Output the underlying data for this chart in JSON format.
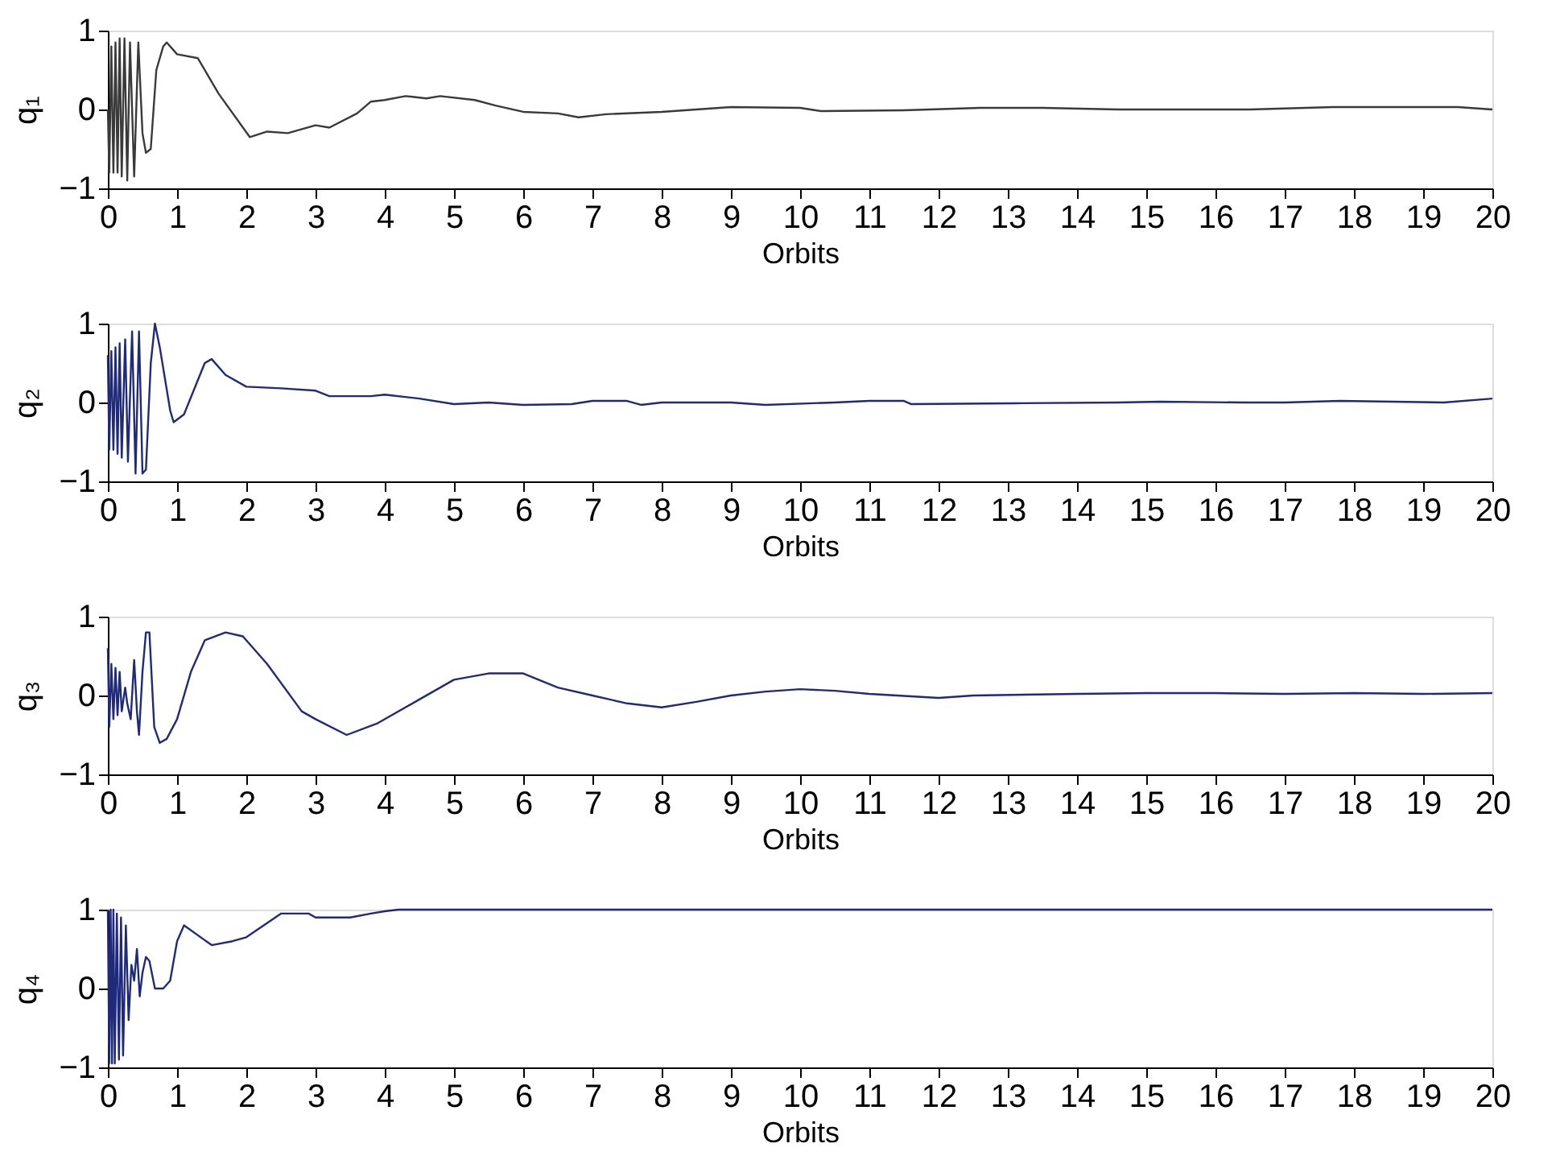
{
  "chart_data": [
    {
      "type": "line",
      "xlabel": "Orbits",
      "ylabel": "q₁",
      "xlim": [
        0,
        20
      ],
      "xticks": [
        0,
        1,
        2,
        3,
        4,
        5,
        6,
        7,
        8,
        9,
        10,
        11,
        12,
        13,
        14,
        15,
        16,
        17,
        18,
        19,
        20
      ],
      "ylim": [
        -1,
        1
      ],
      "yticks": [
        -1,
        0,
        1
      ],
      "grid": false,
      "x": [
        0,
        0.02,
        0.05,
        0.08,
        0.11,
        0.14,
        0.17,
        0.2,
        0.24,
        0.28,
        0.32,
        0.38,
        0.44,
        0.5,
        0.55,
        0.62,
        0.7,
        0.8,
        0.85,
        1.0,
        1.3,
        1.6,
        2.05,
        2.3,
        2.6,
        3.0,
        3.2,
        3.6,
        3.8,
        4.0,
        4.3,
        4.6,
        4.8,
        5.3,
        5.6,
        6.0,
        6.5,
        6.8,
        7.2,
        8,
        8.5,
        9,
        10,
        10.3,
        11.5,
        12.6,
        13.5,
        14.6,
        16.5,
        17.7,
        19.5,
        20
      ],
      "series": [
        {
          "color": "#3a3a3a",
          "values": [
            0,
            -0.8,
            0.8,
            -0.8,
            0.85,
            -0.8,
            0.9,
            -0.85,
            0.9,
            -0.9,
            0.85,
            -0.85,
            0.85,
            -0.3,
            -0.55,
            -0.5,
            0.5,
            0.8,
            0.85,
            0.7,
            0.65,
            0.2,
            -0.35,
            -0.28,
            -0.3,
            -0.2,
            -0.23,
            -0.05,
            0.1,
            0.12,
            0.17,
            0.14,
            0.17,
            0.12,
            0.05,
            -0.03,
            -0.05,
            -0.1,
            -0.06,
            -0.03,
            0.0,
            0.03,
            0.02,
            -0.02,
            -0.01,
            0.02,
            0.02,
            0.0,
            0.0,
            0.03,
            0.03,
            0.0
          ]
        }
      ]
    },
    {
      "type": "line",
      "xlabel": "Orbits",
      "ylabel": "q₂",
      "xlim": [
        0,
        20
      ],
      "xticks": [
        0,
        1,
        2,
        3,
        4,
        5,
        6,
        7,
        8,
        9,
        10,
        11,
        12,
        13,
        14,
        15,
        16,
        17,
        18,
        19,
        20
      ],
      "ylim": [
        -1,
        1
      ],
      "yticks": [
        -1,
        0,
        1
      ],
      "grid": false,
      "x": [
        0,
        0.02,
        0.05,
        0.08,
        0.11,
        0.14,
        0.17,
        0.2,
        0.25,
        0.29,
        0.35,
        0.4,
        0.45,
        0.5,
        0.55,
        0.62,
        0.68,
        0.75,
        0.9,
        0.95,
        1.1,
        1.4,
        1.5,
        1.7,
        2.0,
        2.5,
        3.0,
        3.2,
        3.8,
        4.0,
        4.5,
        5.0,
        5.5,
        6.0,
        6.7,
        7.0,
        7.5,
        7.7,
        8.0,
        9,
        9.5,
        10.5,
        11,
        11.5,
        11.6,
        13.1,
        14.6,
        15.2,
        16.4,
        17,
        17.8,
        19.3,
        20
      ],
      "series": [
        {
          "color": "#1f2a7a",
          "values": [
            0.6,
            -0.6,
            0.65,
            -0.6,
            0.7,
            -0.65,
            0.75,
            -0.7,
            0.8,
            -0.75,
            0.9,
            -0.9,
            0.9,
            -0.9,
            -0.85,
            0.5,
            1.0,
            0.7,
            -0.1,
            -0.25,
            -0.15,
            0.5,
            0.55,
            0.35,
            0.2,
            0.18,
            0.15,
            0.08,
            0.08,
            0.1,
            0.05,
            -0.02,
            0.0,
            -0.03,
            -0.02,
            0.02,
            0.02,
            -0.03,
            0.0,
            0.0,
            -0.03,
            0.0,
            0.02,
            0.02,
            -0.02,
            -0.01,
            0.0,
            0.01,
            0.0,
            0.0,
            0.02,
            0.0,
            0.05
          ]
        }
      ]
    },
    {
      "type": "line",
      "xlabel": "Orbits",
      "ylabel": "q₃",
      "xlim": [
        0,
        20
      ],
      "xticks": [
        0,
        1,
        2,
        3,
        4,
        5,
        6,
        7,
        8,
        9,
        10,
        11,
        12,
        13,
        14,
        15,
        16,
        17,
        18,
        19,
        20
      ],
      "ylim": [
        -1,
        1
      ],
      "yticks": [
        -1,
        0,
        1
      ],
      "grid": false,
      "x": [
        0,
        0.02,
        0.05,
        0.08,
        0.11,
        0.14,
        0.17,
        0.2,
        0.25,
        0.28,
        0.33,
        0.38,
        0.42,
        0.45,
        0.5,
        0.55,
        0.6,
        0.67,
        0.75,
        0.85,
        1.0,
        1.2,
        1.4,
        1.7,
        1.95,
        2.3,
        2.8,
        3.0,
        3.45,
        3.9,
        4.5,
        5.0,
        5.5,
        6.0,
        6.5,
        7.0,
        7.5,
        8.0,
        8.5,
        9.0,
        9.5,
        10.0,
        10.5,
        11.0,
        12,
        12.5,
        14,
        15,
        16,
        17,
        18,
        19,
        20
      ],
      "series": [
        {
          "color": "#1f2a7a",
          "values": [
            0.6,
            -0.4,
            0.4,
            -0.3,
            0.35,
            -0.25,
            0.3,
            -0.2,
            0.1,
            -0.1,
            -0.3,
            0.45,
            -0.2,
            -0.5,
            0.3,
            0.8,
            0.8,
            -0.4,
            -0.6,
            -0.55,
            -0.3,
            0.3,
            0.7,
            0.8,
            0.75,
            0.4,
            -0.2,
            -0.3,
            -0.5,
            -0.35,
            -0.05,
            0.2,
            0.28,
            0.28,
            0.1,
            0.0,
            -0.1,
            -0.15,
            -0.08,
            0.0,
            0.05,
            0.08,
            0.06,
            0.02,
            -0.03,
            0.0,
            0.02,
            0.03,
            0.03,
            0.02,
            0.03,
            0.02,
            0.03
          ]
        }
      ]
    },
    {
      "type": "line",
      "xlabel": "Orbits",
      "ylabel": "q₄",
      "xlim": [
        0,
        20
      ],
      "xticks": [
        0,
        1,
        2,
        3,
        4,
        5,
        6,
        7,
        8,
        9,
        10,
        11,
        12,
        13,
        14,
        15,
        16,
        17,
        18,
        19,
        20
      ],
      "ylim": [
        -1,
        1
      ],
      "yticks": [
        -1,
        0,
        1
      ],
      "grid": false,
      "x": [
        0,
        0.02,
        0.04,
        0.06,
        0.08,
        0.1,
        0.13,
        0.16,
        0.19,
        0.22,
        0.26,
        0.3,
        0.34,
        0.38,
        0.42,
        0.46,
        0.5,
        0.55,
        0.6,
        0.68,
        0.8,
        0.9,
        1.0,
        1.1,
        1.5,
        1.8,
        2.0,
        2.5,
        2.9,
        3.0,
        3.5,
        3.8,
        4.0,
        4.2,
        20
      ],
      "series": [
        {
          "color": "#1f2a7a",
          "values": [
            1,
            -0.95,
            1,
            -0.95,
            1,
            -0.95,
            0.95,
            -0.9,
            0.9,
            -0.85,
            0.8,
            -0.4,
            0.3,
            0.1,
            0.5,
            -0.1,
            0.2,
            0.4,
            0.35,
            0.0,
            0.0,
            0.1,
            0.6,
            0.8,
            0.55,
            0.6,
            0.65,
            0.95,
            0.95,
            0.9,
            0.9,
            0.95,
            0.98,
            1.0,
            1.0
          ]
        }
      ]
    }
  ]
}
